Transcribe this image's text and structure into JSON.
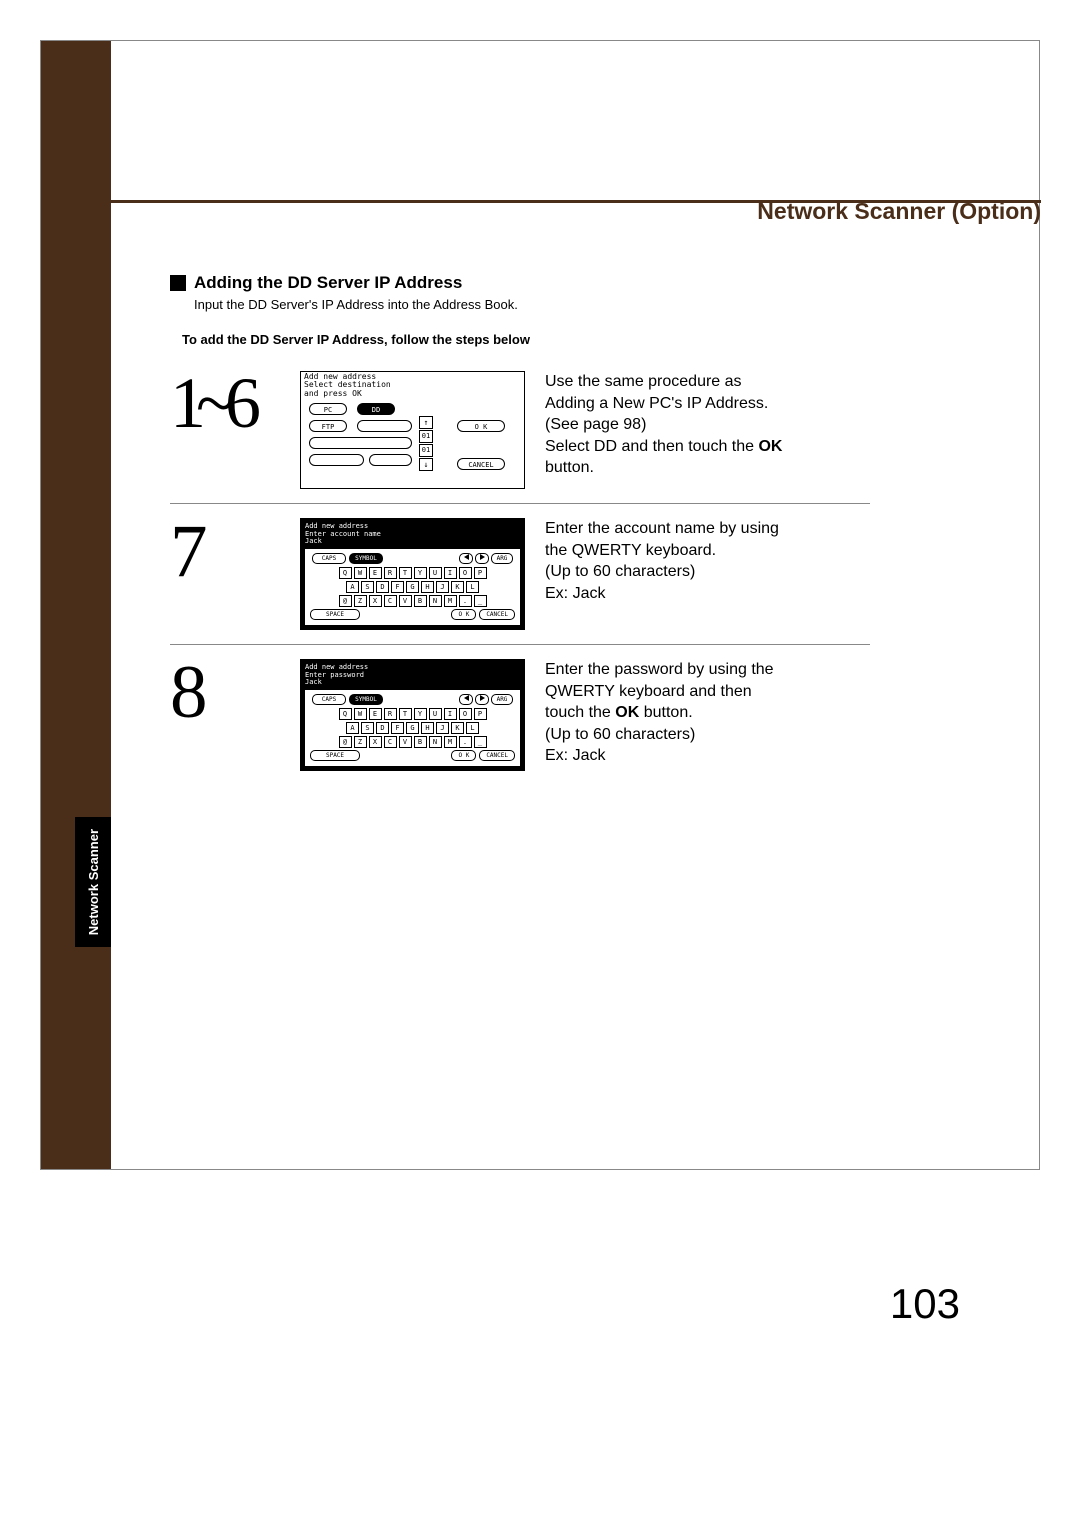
{
  "header": {
    "title": "Network Scanner (Option)"
  },
  "sidebar": {
    "tab_label": "Network Scanner"
  },
  "section": {
    "title": "Adding the DD Server IP Address",
    "subtitle": "Input the DD Server's IP Address into the Address Book.",
    "instruction": "To add the DD Server IP Address, follow the steps below"
  },
  "steps": {
    "s1": {
      "num": "1~6",
      "desc_l1": "Use the same procedure as",
      "desc_l2": "Adding a New PC's IP Address.",
      "desc_l3": "(See page 98)",
      "desc_l4": "Select DD and then touch the ",
      "desc_l4b": "OK",
      "desc_l5": "button.",
      "scr": {
        "line1": "Add new address",
        "line2": "Select destination",
        "line3": "and press OK",
        "btn_pc": "PC",
        "btn_dd": "DD",
        "btn_ftp": "FTP",
        "btn_ok": "O K",
        "btn_cancel": "CANCEL",
        "num01a": "01",
        "num01b": "01",
        "arrow_up": "↑",
        "arrow_dn": "↓"
      }
    },
    "s2": {
      "num": "7",
      "desc_l1": "Enter the account name by using",
      "desc_l2": "the QWERTY keyboard.",
      "desc_l3": "(Up to 60 characters)",
      "desc_l4": "Ex: Jack",
      "scr": {
        "line1": "Add new address",
        "line2": "Enter account name",
        "line3": "Jack"
      }
    },
    "s3": {
      "num": "8",
      "desc_l1": "Enter the password by using the",
      "desc_l2": "QWERTY keyboard and then",
      "desc_l3": "touch the ",
      "desc_l3b": "OK",
      "desc_l3c": " button.",
      "desc_l4": "(Up to 60 characters)",
      "desc_l5": "Ex: Jack",
      "scr": {
        "line1": "Add new address",
        "line2": "Enter password",
        "line3": "Jack"
      }
    }
  },
  "keyboard": {
    "caps": "CAPS",
    "symbol": "SYMBOL",
    "arg": "ARG",
    "row1": [
      "Q",
      "W",
      "E",
      "R",
      "T",
      "Y",
      "U",
      "I",
      "O",
      "P"
    ],
    "row2": [
      "A",
      "S",
      "D",
      "F",
      "G",
      "H",
      "J",
      "K",
      "L"
    ],
    "row3": [
      "@",
      "Z",
      "X",
      "C",
      "V",
      "B",
      "N",
      "M",
      ".",
      "_"
    ],
    "space": "SPACE",
    "ok": "O K",
    "cancel": "CANCEL"
  },
  "page_number": "103",
  "colors": {
    "brown": "#4a2e1a",
    "black": "#000000",
    "white": "#ffffff",
    "border_gray": "#888888"
  }
}
